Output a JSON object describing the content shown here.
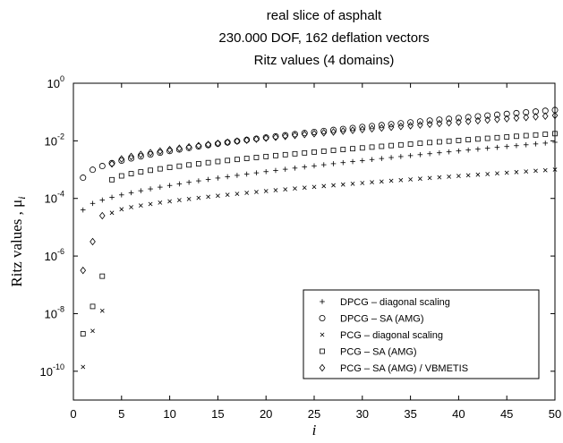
{
  "chart_data": {
    "type": "scatter",
    "title_lines": [
      "real slice of asphalt",
      "230.000 DOF, 162 deflation vectors",
      "Ritz values (4 domains)"
    ],
    "xlabel": "i",
    "ylabel": "Ritz values , μ",
    "ylabel_subscript": "i",
    "xlim": [
      0,
      50
    ],
    "ylim_exponent": [
      -11,
      0
    ],
    "yscale": "log",
    "x_ticks": [
      0,
      5,
      10,
      15,
      20,
      25,
      30,
      35,
      40,
      45,
      50
    ],
    "x_tick_labels": [
      "0",
      "5",
      "10",
      "15",
      "20",
      "25",
      "30",
      "35",
      "40",
      "45",
      "50"
    ],
    "y_ticks_exponent": [
      -10,
      -8,
      -6,
      -4,
      -2,
      0
    ],
    "y_tick_labels": [
      "10",
      "10",
      "10",
      "10",
      "10",
      "10"
    ],
    "y_tick_superscripts": [
      "-10",
      "-8",
      "-6",
      "-4",
      "-2",
      "0"
    ],
    "grid": false,
    "legend_position": "bottom-right",
    "series": [
      {
        "name": "DPCG – diagonal scaling",
        "marker": "plus",
        "x_start": 1,
        "x_end": 50,
        "log10_y_start": -4.4,
        "log10_y_end": -2.05,
        "curve_power": 0.6
      },
      {
        "name": "DPCG – SA (AMG)",
        "marker": "circle",
        "x_start": 1,
        "x_end": 50,
        "log10_y_start": -3.28,
        "log10_y_end": -0.93,
        "curve_power": 0.55
      },
      {
        "name": "PCG – diagonal scaling",
        "marker": "x",
        "early_points": [
          [
            1,
            -9.85
          ],
          [
            2,
            -8.6
          ],
          [
            3,
            -7.9
          ]
        ],
        "x_start": 4,
        "x_end": 50,
        "log10_y_start": -4.5,
        "log10_y_end": -3.0,
        "curve_power": 0.65
      },
      {
        "name": "PCG – SA (AMG)",
        "marker": "square",
        "early_points": [
          [
            1,
            -8.7
          ],
          [
            2,
            -7.75
          ],
          [
            3,
            -6.7
          ]
        ],
        "x_start": 4,
        "x_end": 50,
        "log10_y_start": -3.35,
        "log10_y_end": -1.75,
        "curve_power": 0.65
      },
      {
        "name": "PCG – SA (AMG) / VBMETIS",
        "marker": "diamond",
        "early_points": [
          [
            1,
            -6.5
          ],
          [
            2,
            -5.5
          ],
          [
            3,
            -4.6
          ]
        ],
        "x_start": 4,
        "x_end": 50,
        "log10_y_start": -2.8,
        "log10_y_end": -1.12,
        "curve_power": 0.6
      }
    ]
  }
}
